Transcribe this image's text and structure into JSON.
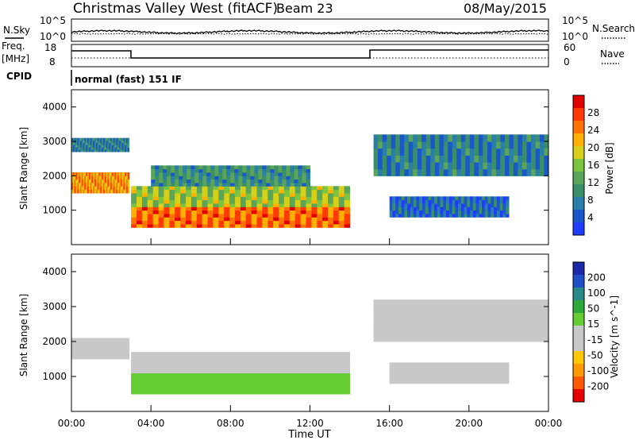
{
  "header": {
    "title": "Christmas Valley West (fitACF)",
    "beam": "Beam 23",
    "date": "08/May/2015"
  },
  "side_labels": {
    "nsky": "N.Sky",
    "nsearch": "N.Search",
    "freq": "Freq.",
    "freq_unit": "[MHz]",
    "nave": "Nave",
    "cpid": "CPID",
    "cpid_text": "normal (fast) 151 IF"
  },
  "noise_axis": {
    "top": "10^5",
    "bottom": "10^0"
  },
  "freq_axis": {
    "left_ticks": [
      "18",
      "8"
    ],
    "right_ticks": [
      "60",
      "0"
    ]
  },
  "colors": {
    "power_scale": [
      "#1f3cff",
      "#1a57c8",
      "#2a7fa8",
      "#3a8f6a",
      "#5aa55a",
      "#7cc440",
      "#d6d018",
      "#ffb000",
      "#ff7400",
      "#ff3a00",
      "#e00000"
    ],
    "velocity_scale": [
      "#e80000",
      "#ff5a00",
      "#ff9a00",
      "#ffc800",
      "#c8c8c8",
      "#c8c8c8",
      "#66cc33",
      "#2eaa3a",
      "#2a8a8a",
      "#1e4ec8",
      "#1a2aa8"
    ]
  },
  "chart_data": [
    {
      "type": "heatmap",
      "name": "power",
      "ylabel": "Slant Range [km]",
      "xlabel": "",
      "yticks": [
        "1000",
        "2000",
        "3000",
        "4000"
      ],
      "colorbar_label": "Power [dB]",
      "colorbar_ticks": [
        "4",
        "8",
        "12",
        "16",
        "20",
        "24",
        "28"
      ],
      "legend_position": "right",
      "regions": [
        {
          "t0": 0.0,
          "t1": 2.9,
          "r0": 1500,
          "r1": 2100,
          "v": 22
        },
        {
          "t0": 0.0,
          "t1": 2.9,
          "r0": 2700,
          "r1": 3100,
          "v": 8
        },
        {
          "t0": 3.0,
          "t1": 14.0,
          "r0": 500,
          "r1": 1100,
          "v": 24
        },
        {
          "t0": 3.0,
          "t1": 14.0,
          "r0": 1100,
          "r1": 1700,
          "v": 16
        },
        {
          "t0": 4.0,
          "t1": 12.0,
          "r0": 1700,
          "r1": 2300,
          "v": 10
        },
        {
          "t0": 15.2,
          "t1": 24.0,
          "r0": 2000,
          "r1": 3200,
          "v": 8
        },
        {
          "t0": 16.0,
          "t1": 22.0,
          "r0": 800,
          "r1": 1400,
          "v": 6
        }
      ]
    },
    {
      "type": "heatmap",
      "name": "velocity",
      "ylabel": "Slant Range [km]",
      "xlabel": "Time UT",
      "xticks": [
        "00:00",
        "04:00",
        "08:00",
        "12:00",
        "16:00",
        "20:00",
        "00:00"
      ],
      "yticks": [
        "1000",
        "2000",
        "3000",
        "4000"
      ],
      "colorbar_label": "Velocity [m s^-1]",
      "colorbar_ticks": [
        "200",
        "100",
        "50",
        "15",
        "-15",
        "-50",
        "-100",
        "-200"
      ],
      "legend_position": "right",
      "regions": [
        {
          "t0": 0.0,
          "t1": 2.9,
          "r0": 1500,
          "r1": 2100,
          "v": 0
        },
        {
          "t0": 3.0,
          "t1": 14.0,
          "r0": 500,
          "r1": 1100,
          "v": 40
        },
        {
          "t0": 3.0,
          "t1": 14.0,
          "r0": 1100,
          "r1": 1700,
          "v": -20
        },
        {
          "t0": 15.2,
          "t1": 24.0,
          "r0": 2000,
          "r1": 3200,
          "v": 0
        },
        {
          "t0": 16.0,
          "t1": 22.0,
          "r0": 800,
          "r1": 1400,
          "v": 0
        }
      ]
    }
  ]
}
